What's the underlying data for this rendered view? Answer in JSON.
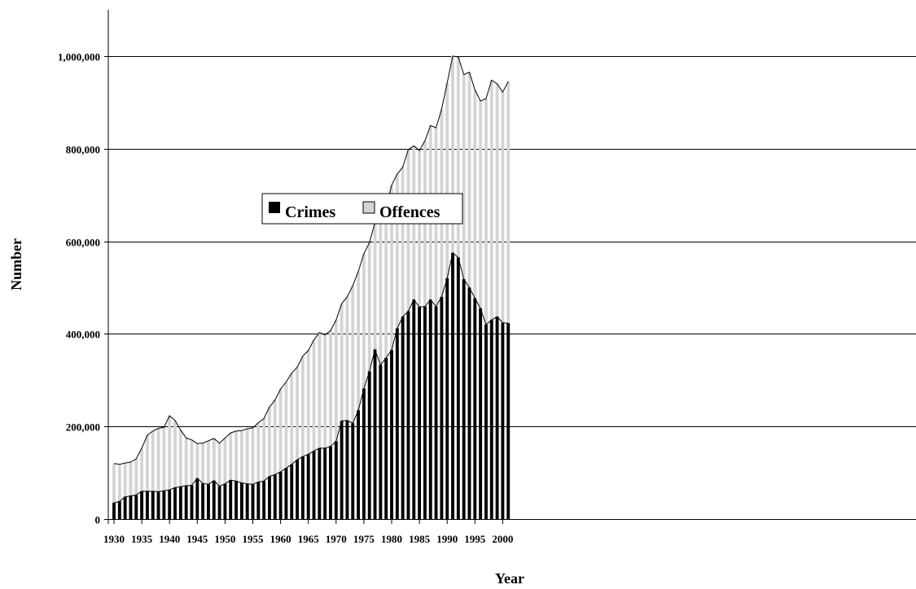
{
  "chart_data": {
    "type": "bar",
    "stacked": true,
    "title": "",
    "xlabel": "Year",
    "ylabel": "Number",
    "ylim": [
      0,
      1100000
    ],
    "xlim": [
      1930,
      2001
    ],
    "grid": "horizontal",
    "legend_position": "upper-left",
    "x_ticks": [
      1930,
      1935,
      1940,
      1945,
      1950,
      1955,
      1960,
      1965,
      1970,
      1975,
      1980,
      1985,
      1990,
      1995,
      2000
    ],
    "x_tick_labels": [
      "1930",
      "1935",
      "1940",
      "1945",
      "1950",
      "1955",
      "1960",
      "1965",
      "1970",
      "1975",
      "1980",
      "1985",
      "1990",
      "1995",
      "2000"
    ],
    "y_ticks": [
      0,
      200000,
      400000,
      600000,
      800000,
      1000000
    ],
    "y_tick_labels": [
      "0",
      "200,000",
      "400,000",
      "600,000",
      "800,000",
      "1,000,000"
    ],
    "x": [
      1930,
      1931,
      1932,
      1933,
      1934,
      1935,
      1936,
      1937,
      1938,
      1939,
      1940,
      1941,
      1942,
      1943,
      1944,
      1945,
      1946,
      1947,
      1948,
      1949,
      1950,
      1951,
      1952,
      1953,
      1954,
      1955,
      1956,
      1957,
      1958,
      1959,
      1960,
      1961,
      1962,
      1963,
      1964,
      1965,
      1966,
      1967,
      1968,
      1969,
      1970,
      1971,
      1972,
      1973,
      1974,
      1975,
      1976,
      1977,
      1978,
      1979,
      1980,
      1981,
      1982,
      1983,
      1984,
      1985,
      1986,
      1987,
      1988,
      1989,
      1990,
      1991,
      1992,
      1993,
      1994,
      1995,
      1996,
      1997,
      1998,
      1999,
      2000,
      2001
    ],
    "series": [
      {
        "name": "Crimes",
        "color": "#000000",
        "values": [
          35000,
          38000,
          48000,
          50000,
          52000,
          60000,
          60000,
          60000,
          59000,
          61000,
          63000,
          68000,
          70000,
          72000,
          73000,
          88000,
          77000,
          75000,
          83000,
          71000,
          76000,
          84000,
          82000,
          78000,
          76000,
          75000,
          80000,
          82000,
          92000,
          96000,
          102000,
          110000,
          118000,
          128000,
          135000,
          140000,
          147000,
          153000,
          153000,
          157000,
          168000,
          212000,
          213000,
          207000,
          235000,
          282000,
          319000,
          366000,
          333000,
          348000,
          365000,
          412000,
          437000,
          449000,
          474000,
          458000,
          459000,
          474000,
          459000,
          480000,
          520000,
          575000,
          565000,
          518000,
          500000,
          477000,
          455000,
          420000,
          430000,
          437000,
          424000,
          423000
        ]
      },
      {
        "name": "Offences",
        "color": "#d4d4d4",
        "values": [
          85000,
          80000,
          73000,
          73000,
          78000,
          93000,
          121000,
          130000,
          137000,
          137000,
          160000,
          145000,
          122000,
          103000,
          98000,
          75000,
          87000,
          94000,
          91000,
          93000,
          99000,
          102000,
          108000,
          113000,
          119000,
          122000,
          128000,
          135000,
          150000,
          161000,
          179000,
          186000,
          197000,
          200000,
          217000,
          224000,
          240000,
          250000,
          245000,
          250000,
          262000,
          253000,
          267000,
          297000,
          300000,
          291000,
          278000,
          274000,
          306000,
          326000,
          356000,
          333000,
          323000,
          349000,
          332000,
          338000,
          358000,
          376000,
          386000,
          405000,
          422000,
          425000,
          433000,
          442000,
          465000,
          450000,
          448000,
          488000,
          518000,
          503000,
          498000,
          522000
        ]
      }
    ]
  }
}
